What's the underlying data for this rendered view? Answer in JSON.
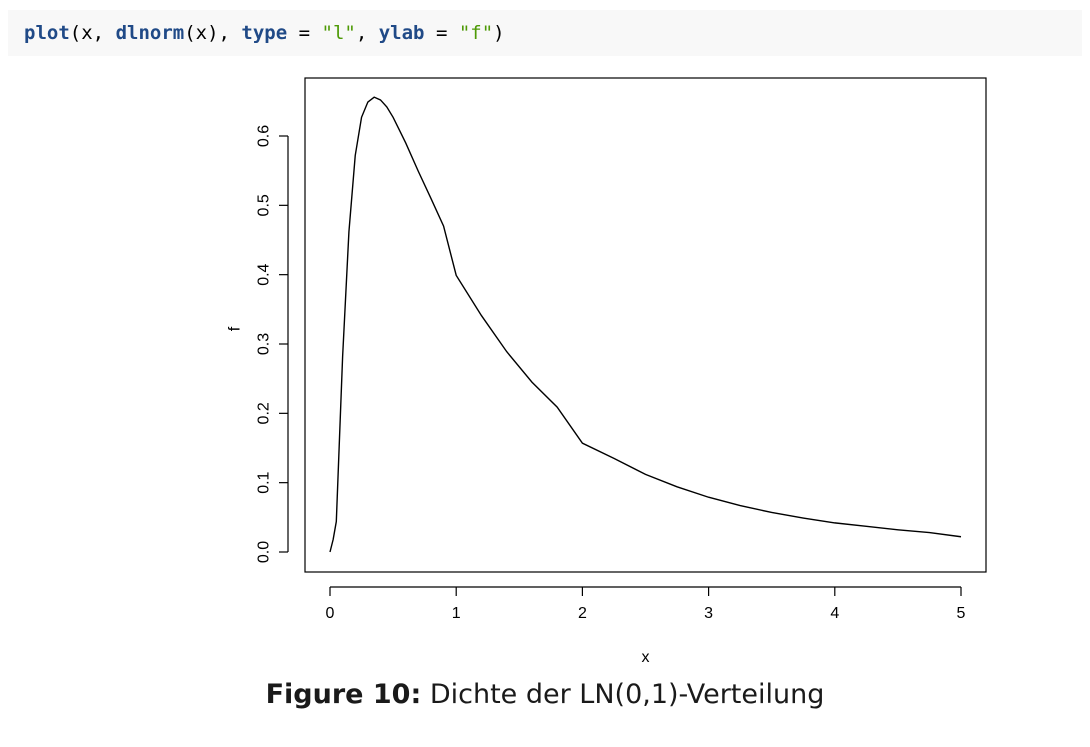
{
  "code": {
    "fn_plot": "plot",
    "open1": "(",
    "arg_x": "x",
    "comma1": ", ",
    "fn_dlnorm": "dlnorm",
    "inner": "(x)",
    "comma2": ", ",
    "kw_type": "type",
    "eq1": " = ",
    "str_l": "\"l\"",
    "comma3": ", ",
    "kw_ylab": "ylab",
    "eq2": " = ",
    "str_f": "\"f\"",
    "close1": ")"
  },
  "caption": {
    "label": "Figure 10:",
    "text": " Dichte der LN(0,1)-Verteilung"
  },
  "chart_data": {
    "type": "line",
    "xlabel": "x",
    "ylabel": "f",
    "xlim": [
      0,
      5
    ],
    "ylim": [
      0,
      0.66
    ],
    "x_ticks": [
      "0",
      "1",
      "2",
      "3",
      "4",
      "5"
    ],
    "y_ticks": [
      "0.0",
      "0.1",
      "0.2",
      "0.3",
      "0.4",
      "0.5",
      "0.6"
    ],
    "grid": false,
    "legend": "none",
    "line_color": "#000000",
    "x": [
      0,
      0.025,
      0.05,
      0.1,
      0.15,
      0.2,
      0.25,
      0.3,
      0.35,
      0.4,
      0.45,
      0.5,
      0.6,
      0.7,
      0.8,
      0.9,
      1.0,
      1.2,
      1.4,
      1.6,
      1.8,
      2.0,
      2.25,
      2.5,
      2.75,
      3.0,
      3.25,
      3.5,
      3.75,
      4.0,
      4.25,
      4.5,
      4.75,
      5.0
    ],
    "y": [
      0,
      0.018,
      0.044,
      0.282,
      0.462,
      0.572,
      0.627,
      0.649,
      0.656,
      0.652,
      0.642,
      0.627,
      0.59,
      0.549,
      0.51,
      0.47,
      0.399,
      0.341,
      0.289,
      0.245,
      0.209,
      0.157,
      0.135,
      0.112,
      0.094,
      0.079,
      0.067,
      0.057,
      0.049,
      0.042,
      0.037,
      0.032,
      0.028,
      0.022
    ]
  }
}
